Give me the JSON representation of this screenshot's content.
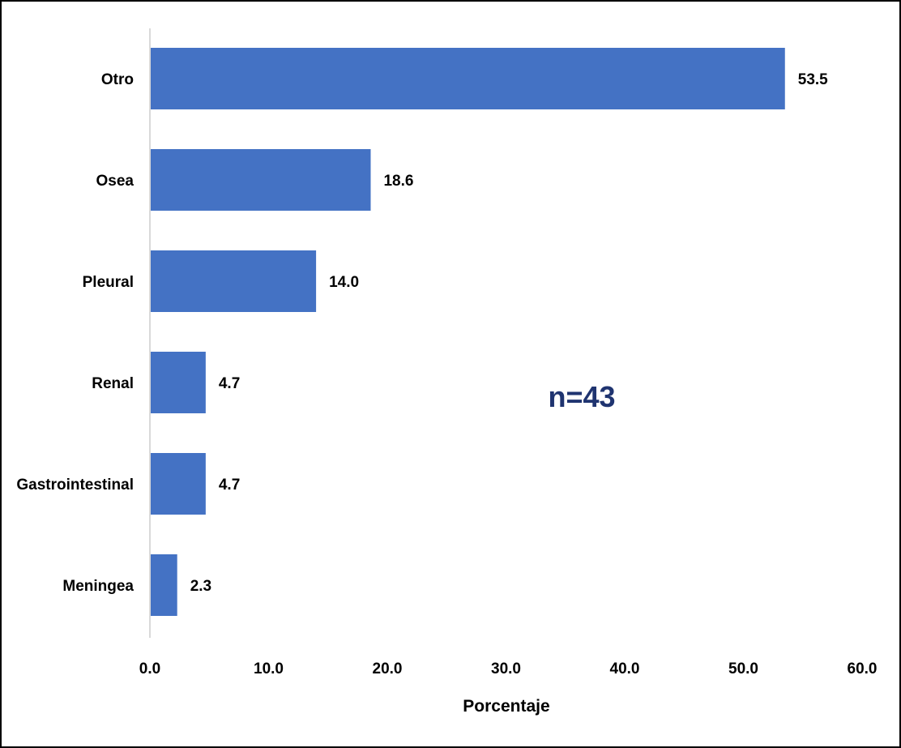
{
  "chart_data": {
    "type": "bar",
    "orientation": "horizontal",
    "categories": [
      "Otro",
      "Osea",
      "Pleural",
      "Renal",
      "Gastrointestinal",
      "Meningea"
    ],
    "values": [
      53.5,
      18.6,
      14.0,
      4.7,
      4.7,
      2.3
    ],
    "data_labels": [
      "53.5",
      "18.6",
      "14.0",
      "4.7",
      "4.7",
      "2.3"
    ],
    "xlabel": "Porcentaje",
    "xlim": [
      0,
      60
    ],
    "x_ticks": [
      "0.0",
      "10.0",
      "20.0",
      "30.0",
      "40.0",
      "50.0",
      "60.0"
    ],
    "grid": false,
    "legend": "none",
    "annotation": "n=43",
    "colors": {
      "bar": "#4472c4",
      "annotation": "#1f3470",
      "axis": "#d9d9d9"
    }
  }
}
